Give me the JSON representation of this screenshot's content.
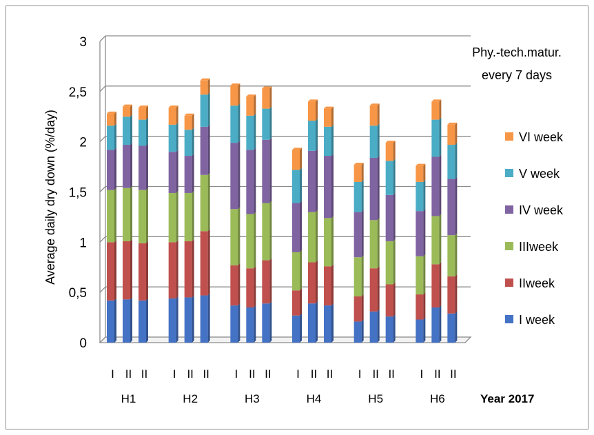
{
  "chart_data": {
    "type": "bar",
    "stacked": true,
    "ylabel": "Average daily dry down (%/day)",
    "ylim": [
      0,
      3
    ],
    "yticks": [
      "0",
      "0,5",
      "1",
      "1,5",
      "2",
      "2,5",
      "3"
    ],
    "grid": true,
    "groups": [
      "H1",
      "H2",
      "H3",
      "H4",
      "H5",
      "H6"
    ],
    "category_labels": [
      "I",
      "II",
      "II"
    ],
    "year_label": "Year 2017",
    "annotation": [
      "Phy.-tech.matur.",
      "every 7 days"
    ],
    "legend_position": "right",
    "series": [
      {
        "name": "I week",
        "color": "#4472C4",
        "values": [
          0.42,
          0.43,
          0.42,
          0.44,
          0.45,
          0.47,
          0.37,
          0.35,
          0.39,
          0.27,
          0.39,
          0.37,
          0.21,
          0.31,
          0.26,
          0.23,
          0.35,
          0.29
        ]
      },
      {
        "name": "IIweek",
        "color": "#C0504D",
        "values": [
          0.58,
          0.58,
          0.57,
          0.56,
          0.56,
          0.64,
          0.4,
          0.39,
          0.43,
          0.25,
          0.41,
          0.39,
          0.25,
          0.43,
          0.32,
          0.25,
          0.43,
          0.37
        ]
      },
      {
        "name": "IIIweek",
        "color": "#9BBB59",
        "values": [
          0.52,
          0.53,
          0.53,
          0.49,
          0.48,
          0.56,
          0.56,
          0.54,
          0.57,
          0.38,
          0.5,
          0.48,
          0.39,
          0.48,
          0.43,
          0.38,
          0.48,
          0.41
        ]
      },
      {
        "name": "IV week",
        "color": "#8064A2",
        "values": [
          0.4,
          0.43,
          0.44,
          0.41,
          0.37,
          0.48,
          0.66,
          0.64,
          0.63,
          0.49,
          0.61,
          0.62,
          0.45,
          0.62,
          0.46,
          0.45,
          0.59,
          0.56
        ]
      },
      {
        "name": "V week",
        "color": "#4BACC6",
        "values": [
          0.24,
          0.28,
          0.26,
          0.27,
          0.26,
          0.32,
          0.37,
          0.34,
          0.31,
          0.33,
          0.3,
          0.29,
          0.3,
          0.32,
          0.34,
          0.29,
          0.37,
          0.34
        ]
      },
      {
        "name": "VI week",
        "color": "#F79646",
        "values": [
          0.12,
          0.1,
          0.12,
          0.17,
          0.14,
          0.14,
          0.2,
          0.19,
          0.2,
          0.2,
          0.19,
          0.18,
          0.17,
          0.2,
          0.18,
          0.16,
          0.18,
          0.2
        ]
      }
    ]
  }
}
